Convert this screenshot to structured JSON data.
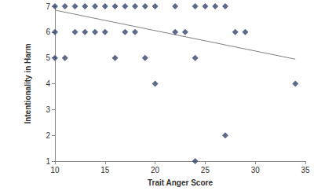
{
  "chart_data": {
    "type": "scatter",
    "x_label": "Trait Anger Score",
    "y_label": "Intentionality in Harm",
    "xlim": [
      10,
      35
    ],
    "xticks": [
      10,
      15,
      20,
      25,
      30,
      35
    ],
    "ylim": [
      1,
      7
    ],
    "yticks": [
      1,
      2,
      3,
      4,
      5,
      6,
      7
    ],
    "grid": false,
    "series": [
      {
        "type": "scatter",
        "marker": "diamond",
        "color": "#34456a",
        "x": [
          10,
          11,
          12,
          13,
          14,
          15,
          16,
          17,
          18,
          19,
          20,
          22,
          24,
          25,
          26,
          27,
          10,
          12,
          13,
          14,
          15,
          17,
          18,
          22,
          23,
          28,
          29,
          10,
          11,
          16,
          19,
          24,
          20,
          34,
          27,
          24
        ],
        "values": [
          7,
          7,
          7,
          7,
          7,
          7,
          7,
          7,
          7,
          7,
          7,
          7,
          7,
          7,
          7,
          7,
          6,
          6,
          6,
          6,
          6,
          6,
          6,
          6,
          6,
          6,
          6,
          5,
          5,
          5,
          5,
          5,
          4,
          4,
          2,
          1
        ]
      },
      {
        "type": "line",
        "marker": "none",
        "color": "#808080",
        "x": [
          10,
          34
        ],
        "values": [
          6.85,
          4.95
        ]
      }
    ]
  }
}
